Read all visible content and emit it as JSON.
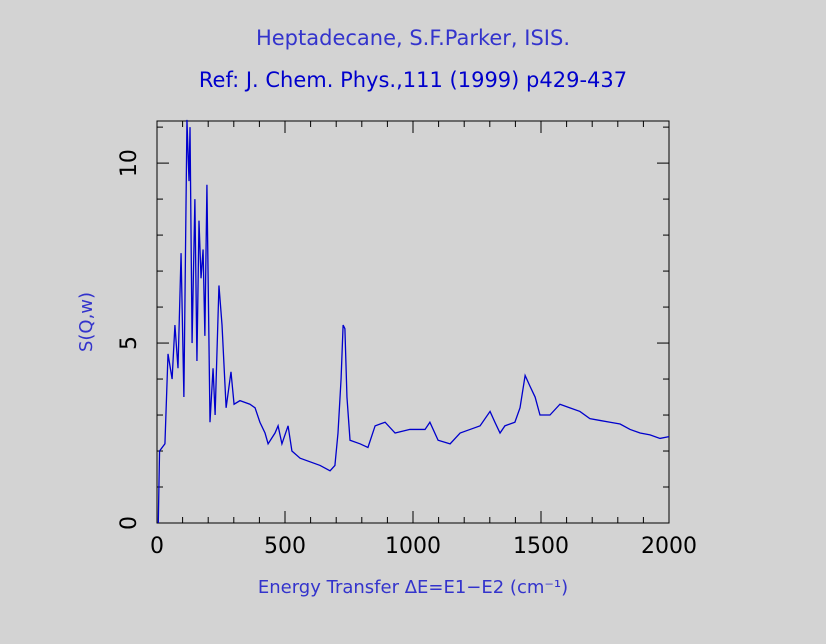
{
  "chart_data": {
    "type": "line",
    "title": "Heptadecane, S.F.Parker, ISIS.",
    "subtitle": "Ref: J. Chem. Phys.,111 (1999) p429-437",
    "xlabel": "Energy Transfer ΔE=E1−E2 (cm⁻¹)",
    "ylabel": "S(Q,w)",
    "xlim": [
      0,
      2000
    ],
    "ylim": [
      0,
      11.17
    ],
    "xticks": [
      0,
      500,
      1000,
      1500,
      2000
    ],
    "yticks": [
      0,
      5,
      10
    ],
    "xticks_minor": [
      100,
      200,
      300,
      400,
      600,
      700,
      800,
      900,
      1100,
      1200,
      1300,
      1400,
      1600,
      1700,
      1800,
      1900
    ],
    "yticks_minor": [
      1,
      2,
      3,
      4,
      6,
      7,
      8,
      9,
      11
    ],
    "series": [
      {
        "color": "#0000cc",
        "x": [
          5,
          10,
          31,
          43,
          59,
          70,
          82,
          94,
          105,
          117,
          125,
          129,
          137,
          148,
          156,
          164,
          172,
          180,
          187,
          195,
          207,
          219,
          227,
          242,
          254,
          270,
          289,
          301,
          324,
          363,
          383,
          402,
          422,
          434,
          461,
          473,
          488,
          512,
          527,
          559,
          637,
          676,
          695,
          707,
          719,
          727,
          734,
          742,
          754,
          793,
          824,
          852,
          891,
          930,
          988,
          1047,
          1066,
          1098,
          1145,
          1184,
          1223,
          1262,
          1301,
          1320,
          1340,
          1359,
          1398,
          1418,
          1438,
          1457,
          1477,
          1496,
          1535,
          1574,
          1613,
          1652,
          1691,
          1730,
          1770,
          1809,
          1848,
          1887,
          1926,
          1965,
          2000
        ],
        "values": [
          0,
          2.0,
          2.2,
          4.7,
          4.0,
          5.5,
          4.3,
          7.5,
          3.5,
          11.2,
          9.5,
          11.0,
          5.0,
          9.0,
          4.5,
          8.4,
          6.8,
          7.6,
          5.2,
          9.4,
          2.8,
          4.3,
          3.0,
          6.6,
          5.5,
          3.2,
          4.2,
          3.3,
          3.4,
          3.3,
          3.2,
          2.8,
          2.5,
          2.2,
          2.5,
          2.7,
          2.2,
          2.7,
          2.0,
          1.8,
          1.6,
          1.45,
          1.6,
          2.5,
          4.0,
          5.5,
          5.4,
          3.5,
          2.3,
          2.2,
          2.1,
          2.7,
          2.8,
          2.5,
          2.6,
          2.6,
          2.8,
          2.3,
          2.2,
          2.5,
          2.6,
          2.7,
          3.1,
          2.8,
          2.5,
          2.7,
          2.8,
          3.2,
          4.1,
          3.8,
          3.5,
          3.0,
          3.0,
          3.3,
          3.2,
          3.1,
          2.9,
          2.85,
          2.8,
          2.75,
          2.6,
          2.5,
          2.45,
          2.35,
          2.4
        ]
      }
    ]
  }
}
